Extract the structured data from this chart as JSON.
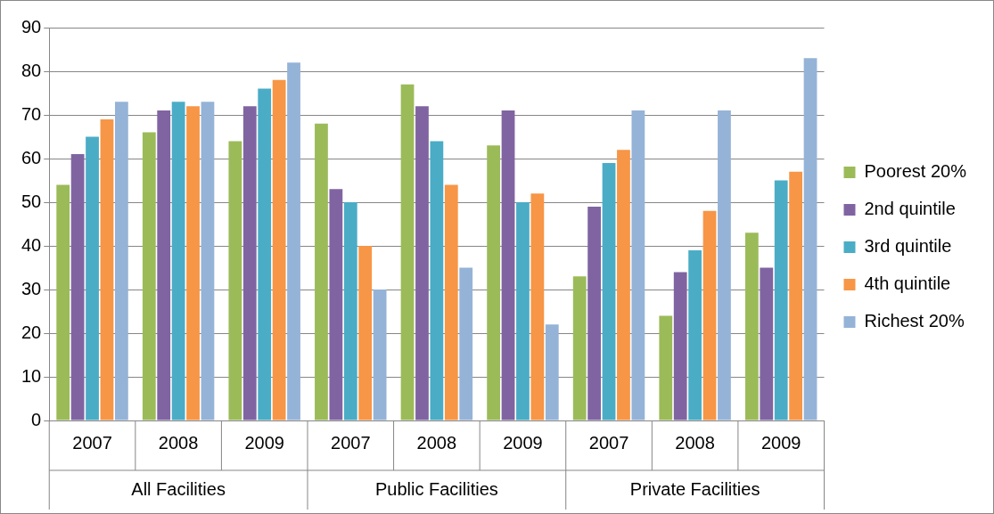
{
  "chart_data": {
    "type": "bar",
    "categories": [
      "2007",
      "2008",
      "2009",
      "2007",
      "2008",
      "2009",
      "2007",
      "2008",
      "2009"
    ],
    "annotations": [
      "All Facilities",
      "Public Facilities",
      "Private Facilities"
    ],
    "series": [
      {
        "name": "Poorest 20%",
        "color": "#9bbb59",
        "values": [
          54,
          66,
          64,
          68,
          77,
          63,
          33,
          24,
          43
        ]
      },
      {
        "name": "2nd quintile",
        "color": "#8064a2",
        "values": [
          61,
          71,
          72,
          53,
          72,
          71,
          49,
          34,
          35
        ]
      },
      {
        "name": "3rd quintile",
        "color": "#4bacc6",
        "values": [
          65,
          73,
          76,
          50,
          64,
          50,
          59,
          39,
          55
        ]
      },
      {
        "name": "4th quintile",
        "color": "#f79646",
        "values": [
          69,
          72,
          78,
          40,
          54,
          52,
          62,
          48,
          57
        ]
      },
      {
        "name": "Richest 20%",
        "color": "#95b3d7",
        "values": [
          73,
          73,
          82,
          30,
          35,
          22,
          71,
          71,
          83
        ]
      }
    ],
    "ylim": [
      0,
      90
    ],
    "yticks": [
      0,
      10,
      20,
      30,
      40,
      50,
      60,
      70,
      80,
      90
    ],
    "grid": "y",
    "legend": "right"
  }
}
